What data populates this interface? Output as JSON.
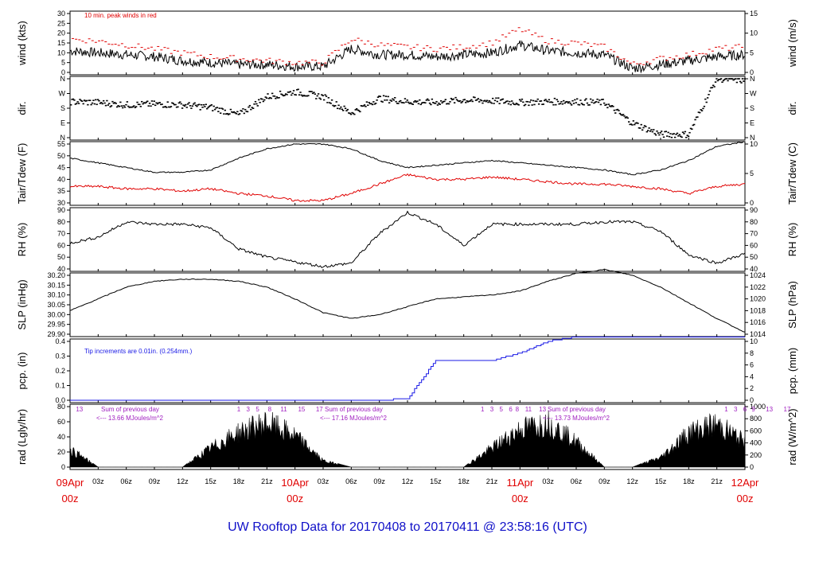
{
  "title": "UW Rooftop Data for 20170408  to  20170411 @ 23:58:16  (UTC)",
  "colors": {
    "trace": "#000000",
    "peak_wind": "#e00000",
    "dewpoint": "#e00000",
    "precip": "#1a1ae6",
    "note_purple": "#a020c0",
    "title": "#1010c8",
    "day_label": "#e00000"
  },
  "x_axis": {
    "day_labels": [
      {
        "day": "09Apr",
        "hour": "00z",
        "t": 0
      },
      {
        "day": "10Apr",
        "hour": "00z",
        "t": 24
      },
      {
        "day": "11Apr",
        "hour": "00z",
        "t": 48
      },
      {
        "day": "12Apr",
        "hour": "00z",
        "t": 72
      }
    ],
    "hour_labels": [
      "03z",
      "06z",
      "09z",
      "12z",
      "15z",
      "18z",
      "21z"
    ],
    "range_hours": [
      0,
      72
    ]
  },
  "panels": [
    {
      "id": "wind",
      "left_label": "wind (kts)",
      "right_label": "wind (m/s)",
      "left_ticks": [
        "0",
        "5",
        "10",
        "15",
        "20",
        "25",
        "30"
      ],
      "right_ticks": [
        "0",
        "5",
        "10",
        "15"
      ],
      "note": "10 min. peak winds in red"
    },
    {
      "id": "dir",
      "left_label": "dir.",
      "right_label": "dir.",
      "left_ticks": [
        "N",
        "E",
        "S",
        "W",
        "N"
      ],
      "right_ticks": [
        "N",
        "E",
        "S",
        "W",
        "N"
      ]
    },
    {
      "id": "temp",
      "left_label": "Tair/Tdew (F)",
      "right_label": "Tair/Tdew (C)",
      "left_ticks": [
        "30",
        "35",
        "40",
        "45",
        "50",
        "55"
      ],
      "right_ticks": [
        "0",
        "5",
        "10"
      ]
    },
    {
      "id": "rh",
      "left_label": "RH (%)",
      "right_label": "RH (%)",
      "left_ticks": [
        "40",
        "50",
        "60",
        "70",
        "80",
        "90"
      ],
      "right_ticks": [
        "40",
        "50",
        "60",
        "70",
        "80",
        "90"
      ]
    },
    {
      "id": "slp",
      "left_label": "SLP (inHg)",
      "right_label": "SLP (hPa)",
      "left_ticks": [
        "29.90",
        "29.95",
        "30.00",
        "30.05",
        "30.10",
        "30.15",
        "30.20"
      ],
      "right_ticks": [
        "1014",
        "1016",
        "1018",
        "1020",
        "1022",
        "1024"
      ]
    },
    {
      "id": "pcp",
      "left_label": "pcp. (in)",
      "right_label": "pcp. (mm)",
      "left_ticks": [
        "0.0",
        "0.1",
        "0.2",
        "0.3",
        "0.4"
      ],
      "right_ticks": [
        "0",
        "2",
        "4",
        "6",
        "8",
        "10"
      ],
      "note": "Tip increments are 0.01in. (0.254mm.)"
    },
    {
      "id": "rad",
      "left_label": "rad (Lgly/hr)",
      "right_label": "rad (W/m^2)",
      "left_ticks": [
        "0",
        "20",
        "40",
        "60",
        "80"
      ],
      "right_ticks": [
        "0",
        "200",
        "400",
        "600",
        "800",
        "1000"
      ],
      "notes": [
        {
          "line1": "Sum of previous day",
          "line2": "<--- 13.66 MJoules/m^2"
        },
        {
          "line1": "Sum of previous day",
          "line2": "<--- 17.16 MJoules/m^2"
        },
        {
          "line1": "Sum of previous day",
          "line2": "<--- 13.73 MJoules/m^2"
        }
      ],
      "hour_marks": [
        {
          "t": 1,
          "label": "13"
        },
        {
          "t": 18,
          "label": "1"
        },
        {
          "t": 19,
          "label": "3"
        },
        {
          "t": 20,
          "label": "5"
        },
        {
          "t": 21.3,
          "label": "8"
        },
        {
          "t": 22.8,
          "label": "11"
        },
        {
          "t": 24.7,
          "label": "15"
        },
        {
          "t": 26.6,
          "label": "17"
        },
        {
          "t": 44,
          "label": "1"
        },
        {
          "t": 45,
          "label": "3"
        },
        {
          "t": 46,
          "label": "5"
        },
        {
          "t": 47,
          "label": "6"
        },
        {
          "t": 47.7,
          "label": "8"
        },
        {
          "t": 48.9,
          "label": "11"
        },
        {
          "t": 50.4,
          "label": "13"
        },
        {
          "t": 70,
          "label": "1"
        },
        {
          "t": 71,
          "label": "3"
        },
        {
          "t": 72,
          "label": "6"
        },
        {
          "t": 72.9,
          "label": "9"
        },
        {
          "t": 74.6,
          "label": "13"
        },
        {
          "t": 76.5,
          "label": "17"
        }
      ]
    }
  ],
  "chart_data": {
    "type": "line",
    "title": "UW Rooftop Data for 20170408  to  20170411 @ 23:58:16  (UTC)",
    "x_unit": "hours since 09Apr 00z",
    "x": [
      0,
      3,
      6,
      9,
      12,
      15,
      18,
      21,
      24,
      27,
      30,
      33,
      36,
      39,
      42,
      45,
      48,
      51,
      54,
      57,
      60,
      63,
      66,
      69,
      72
    ],
    "series": [
      {
        "name": "wind (kts)",
        "values": [
          11,
          10,
          9,
          8,
          6,
          5,
          4,
          4,
          3,
          3,
          12,
          9,
          9,
          8,
          9,
          10,
          14,
          11,
          10,
          9,
          2,
          4,
          6,
          8,
          9
        ]
      },
      {
        "name": "10 min. peak winds",
        "values": [
          17,
          16,
          14,
          12,
          10,
          8,
          7,
          6,
          5,
          5,
          17,
          14,
          13,
          12,
          13,
          15,
          22,
          16,
          15,
          13,
          4,
          7,
          9,
          12,
          13
        ]
      },
      {
        "name": "dir. (deg)",
        "values": [
          220,
          215,
          200,
          205,
          200,
          185,
          140,
          250,
          280,
          250,
          150,
          240,
          220,
          215,
          230,
          225,
          215,
          220,
          220,
          215,
          90,
          20,
          20,
          360,
          350
        ]
      },
      {
        "name": "Tair (F)",
        "values": [
          49,
          47,
          45,
          43,
          43,
          44,
          49,
          53,
          55,
          55,
          53,
          48,
          45,
          46,
          47,
          48,
          47,
          46,
          45,
          44,
          42,
          44,
          48,
          54,
          56
        ]
      },
      {
        "name": "Tdew (F)",
        "values": [
          37,
          37,
          36,
          36,
          35,
          36,
          34,
          33,
          31,
          31,
          34,
          38,
          42,
          40,
          40,
          41,
          40,
          39,
          38,
          38,
          37,
          36,
          34,
          37,
          38
        ]
      },
      {
        "name": "RH (%)",
        "values": [
          62,
          67,
          80,
          78,
          78,
          75,
          57,
          50,
          46,
          42,
          45,
          70,
          88,
          78,
          60,
          78,
          78,
          78,
          78,
          80,
          80,
          72,
          52,
          45,
          53
        ]
      },
      {
        "name": "SLP (inHg)",
        "values": [
          30.02,
          30.08,
          30.14,
          30.17,
          30.18,
          30.18,
          30.17,
          30.14,
          30.08,
          30.01,
          29.98,
          30.0,
          30.04,
          30.08,
          30.09,
          30.1,
          30.12,
          30.17,
          30.21,
          30.23,
          30.2,
          30.14,
          30.06,
          29.98,
          29.91
        ]
      },
      {
        "name": "pcp. (in)",
        "values": [
          0,
          0,
          0,
          0,
          0,
          0,
          0,
          0,
          0,
          0,
          0,
          0,
          0.01,
          0.27,
          0.27,
          0.27,
          0.32,
          0.4,
          0.43,
          0.43,
          0.43,
          0.43,
          0.43,
          0.43,
          0.43
        ]
      },
      {
        "name": "rad (Lgly/hr)",
        "values": [
          28,
          0,
          0,
          0,
          0,
          30,
          55,
          70,
          50,
          10,
          0,
          0,
          0,
          0,
          0,
          30,
          60,
          70,
          40,
          0,
          0,
          15,
          55,
          68,
          40
        ]
      }
    ]
  }
}
